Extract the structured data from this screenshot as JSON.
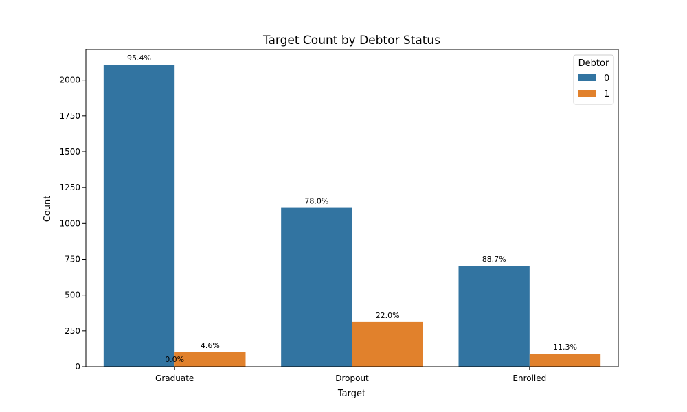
{
  "chart_data": {
    "type": "bar",
    "title": "Target Count by Debtor Status",
    "xlabel": "Target",
    "ylabel": "Count",
    "categories": [
      "Graduate",
      "Dropout",
      "Enrolled"
    ],
    "series": [
      {
        "name": "0",
        "values": [
          2108,
          1109,
          704
        ],
        "labels": [
          "95.4%",
          "78.0%",
          "88.7%"
        ],
        "color": "#3274a1"
      },
      {
        "name": "1",
        "values": [
          101,
          312,
          90
        ],
        "labels": [
          "4.6%",
          "22.0%",
          "11.3%"
        ],
        "color": "#e1812c"
      }
    ],
    "extra_annotation": {
      "text": "0.0%",
      "category": "Graduate",
      "y": 0
    },
    "ylim": [
      0,
      2214
    ],
    "yticks": [
      0,
      250,
      500,
      750,
      1000,
      1250,
      1500,
      1750,
      2000
    ],
    "legend": {
      "title": "Debtor",
      "position": "top-right"
    },
    "grid": false
  }
}
